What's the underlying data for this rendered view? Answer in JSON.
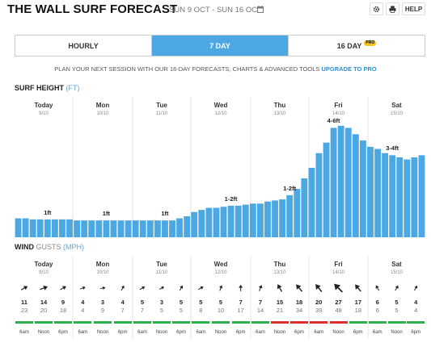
{
  "header": {
    "title": "THE WALL SURF FORECAST",
    "date_range": "SUN 9 OCT - SUN 16 OCT",
    "help_label": "HELP"
  },
  "tabs": [
    {
      "label": "HOURLY",
      "active": false
    },
    {
      "label": "7 DAY",
      "active": true
    },
    {
      "label": "16 DAY",
      "active": false,
      "badge": "PRO"
    }
  ],
  "promo": {
    "text": "PLAN YOUR NEXT SESSION WITH OUR 16-DAY FORECASTS, CHARTS & ADVANCED TOOLS",
    "link": "UPGRADE TO PRO"
  },
  "colors": {
    "accent": "#4ba8e3",
    "rating_good": "#2bb14a",
    "rating_poor": "#d9302c"
  },
  "days": [
    {
      "name": "Today",
      "date": "9/10"
    },
    {
      "name": "Mon",
      "date": "10/10"
    },
    {
      "name": "Tue",
      "date": "11/10"
    },
    {
      "name": "Wed",
      "date": "12/10"
    },
    {
      "name": "Thu",
      "date": "13/10"
    },
    {
      "name": "Fri",
      "date": "14/10"
    },
    {
      "name": "Sat",
      "date": "15/10"
    }
  ],
  "surf": {
    "title": "SURF HEIGHT",
    "unit": "(FT)",
    "wave_labels": [
      "1ft",
      "1ft",
      "1ft",
      "1-2ft",
      "1-2ft",
      "4-6ft",
      "3-4ft"
    ]
  },
  "chart_data": {
    "type": "bar",
    "title": "SURF HEIGHT (FT)",
    "ylabel": "",
    "xlabel": "",
    "bar_count": 56,
    "values": [
      0.9,
      0.9,
      0.85,
      0.85,
      0.85,
      0.85,
      0.85,
      0.85,
      0.8,
      0.8,
      0.8,
      0.8,
      0.8,
      0.8,
      0.8,
      0.8,
      0.8,
      0.8,
      0.8,
      0.8,
      0.8,
      0.8,
      0.9,
      1.0,
      1.2,
      1.3,
      1.4,
      1.4,
      1.45,
      1.5,
      1.5,
      1.55,
      1.6,
      1.6,
      1.7,
      1.75,
      1.8,
      2.0,
      2.3,
      2.8,
      3.3,
      4.0,
      4.5,
      5.2,
      5.3,
      5.2,
      4.9,
      4.6,
      4.3,
      4.2,
      4.0,
      3.9,
      3.8,
      3.7,
      3.8,
      3.9
    ],
    "ylim": [
      0,
      6.5
    ]
  },
  "wind": {
    "title": "WIND",
    "subtitle": "GUSTS",
    "unit": "(MPH)",
    "times": [
      "6am",
      "Noon",
      "6pm"
    ],
    "slots": [
      {
        "speed": "11",
        "gust": "23",
        "dir": 60,
        "rating": "good"
      },
      {
        "speed": "14",
        "gust": "20",
        "dir": 70,
        "rating": "good"
      },
      {
        "speed": "9",
        "gust": "18",
        "dir": 60,
        "rating": "good"
      },
      {
        "speed": "4",
        "gust": "4",
        "dir": 70,
        "rating": "good"
      },
      {
        "speed": "3",
        "gust": "9",
        "dir": 80,
        "rating": "good"
      },
      {
        "speed": "4",
        "gust": "7",
        "dir": 30,
        "rating": "good"
      },
      {
        "speed": "5",
        "gust": "7",
        "dir": 60,
        "rating": "good"
      },
      {
        "speed": "3",
        "gust": "5",
        "dir": 60,
        "rating": "good"
      },
      {
        "speed": "5",
        "gust": "5",
        "dir": 30,
        "rating": "good"
      },
      {
        "speed": "5",
        "gust": "8",
        "dir": 60,
        "rating": "good"
      },
      {
        "speed": "5",
        "gust": "10",
        "dir": 20,
        "rating": "good"
      },
      {
        "speed": "7",
        "gust": "17",
        "dir": 0,
        "rating": "good"
      },
      {
        "speed": "7",
        "gust": "14",
        "dir": 20,
        "rating": "good"
      },
      {
        "speed": "15",
        "gust": "21",
        "dir": 330,
        "rating": "poor"
      },
      {
        "speed": "18",
        "gust": "34",
        "dir": 320,
        "rating": "poor"
      },
      {
        "speed": "20",
        "gust": "39",
        "dir": 320,
        "rating": "poor"
      },
      {
        "speed": "27",
        "gust": "48",
        "dir": 315,
        "rating": "poor"
      },
      {
        "speed": "17",
        "gust": "18",
        "dir": 320,
        "rating": "good"
      },
      {
        "speed": "6",
        "gust": "6",
        "dir": 330,
        "rating": "good"
      },
      {
        "speed": "5",
        "gust": "5",
        "dir": 30,
        "rating": "good"
      },
      {
        "speed": "4",
        "gust": "4",
        "dir": 30,
        "rating": "good"
      }
    ]
  },
  "icons": [
    "calendar-icon",
    "gear-icon",
    "print-icon"
  ]
}
